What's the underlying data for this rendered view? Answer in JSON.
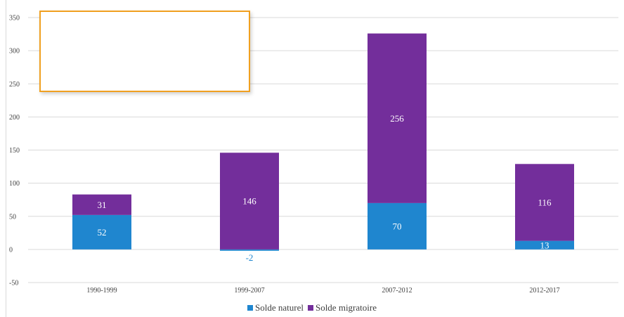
{
  "chart_data": {
    "type": "bar",
    "stacked": true,
    "categories": [
      "1990-1999",
      "1999-2007",
      "2007-2012",
      "2012-2017"
    ],
    "series": [
      {
        "name": "Solde naturel",
        "values": [
          52,
          -2,
          70,
          13
        ],
        "color": "#1f86cf"
      },
      {
        "name": "Solde migratoire",
        "values": [
          31,
          146,
          256,
          116
        ],
        "color": "#732e9b"
      }
    ],
    "yticks": [
      -50,
      0,
      50,
      100,
      150,
      200,
      250,
      300,
      350
    ],
    "ylim": [
      -50,
      350
    ],
    "grid": true,
    "legend_position": "bottom",
    "data_labels": true
  },
  "overlay": {
    "name": "highlight-box",
    "color": "#f0a020"
  }
}
